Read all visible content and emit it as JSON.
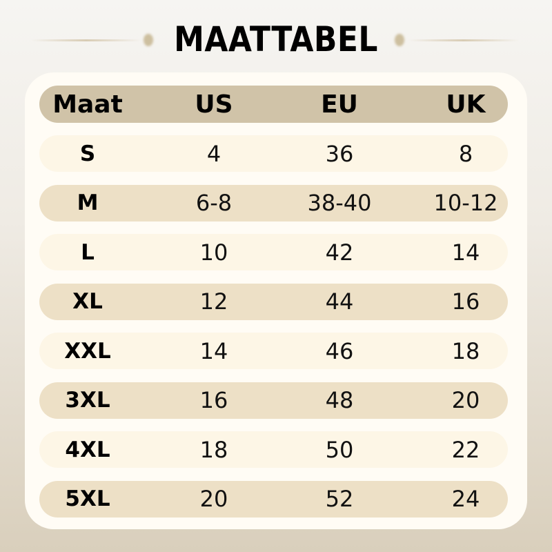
{
  "title": "MAATTABEL",
  "colors": {
    "header_row": "#d0c3a8",
    "row_light": "#fdf6e6",
    "row_dark": "#ede0c6",
    "card": "#fffcf5"
  },
  "table": {
    "headers": [
      "Maat",
      "US",
      "EU",
      "UK"
    ],
    "rows": [
      [
        "S",
        "4",
        "36",
        "8"
      ],
      [
        "M",
        "6-8",
        "38-40",
        "10-12"
      ],
      [
        "L",
        "10",
        "42",
        "14"
      ],
      [
        "XL",
        "12",
        "44",
        "16"
      ],
      [
        "XXL",
        "14",
        "46",
        "18"
      ],
      [
        "3XL",
        "16",
        "48",
        "20"
      ],
      [
        "4XL",
        "18",
        "50",
        "22"
      ],
      [
        "5XL",
        "20",
        "52",
        "24"
      ]
    ]
  }
}
